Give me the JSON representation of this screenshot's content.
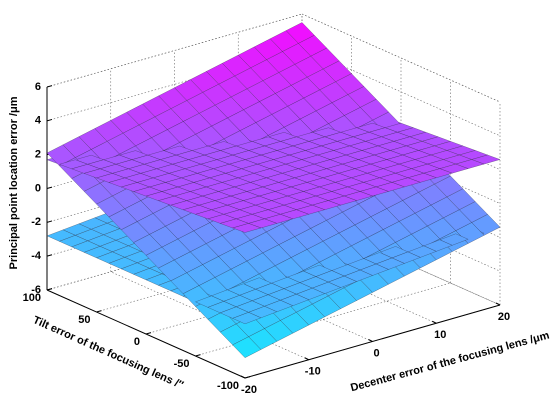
{
  "chart_data": {
    "type": "surface3d",
    "xlabel": "Decenter error of the focusing lens /μm",
    "ylabel": "Tilt error of the focusing lens /″",
    "zlabel": "Principal point location error /μm",
    "x": [
      -20,
      -10,
      0,
      10,
      20
    ],
    "y": [
      -100,
      -50,
      0,
      50,
      100
    ],
    "surfaces": [
      {
        "z": [
          [
            -4.8,
            -3.95,
            -3.1,
            -2.25,
            -1.4
          ],
          [
            -3.075,
            -2.225,
            -1.375,
            -0.525,
            0.325
          ],
          [
            -1.35,
            -0.5,
            0.35,
            1.2,
            2.05
          ],
          [
            0.375,
            1.225,
            2.075,
            2.925,
            3.775
          ],
          [
            2.1,
            2.95,
            3.8,
            4.65,
            5.5
          ]
        ]
      },
      {
        "z": [
          [
            2.6,
            2.6,
            2.6,
            2.6,
            2.6
          ],
          [
            2.375,
            2.375,
            2.375,
            2.375,
            2.375
          ],
          [
            2.15,
            2.15,
            2.15,
            2.15,
            2.15
          ],
          [
            1.925,
            1.925,
            1.925,
            1.925,
            1.925
          ],
          [
            1.7,
            1.7,
            1.7,
            1.7,
            1.7
          ]
        ]
      },
      {
        "z": [
          [
            -2.8,
            -2.45,
            -2.1,
            -1.75,
            -1.4
          ],
          [
            -2.8,
            -2.45,
            -2.1,
            -1.75,
            -1.4
          ],
          [
            -2.8,
            -2.45,
            -2.1,
            -1.75,
            -1.4
          ],
          [
            -2.8,
            -2.45,
            -2.1,
            -1.75,
            -1.4
          ],
          [
            -2.8,
            -2.45,
            -2.1,
            -1.75,
            -1.4
          ]
        ]
      }
    ],
    "xlim": [
      -20,
      20
    ],
    "ylim": [
      -100,
      100
    ],
    "zlim": [
      -6,
      6
    ],
    "xticks": [
      -20,
      -10,
      0,
      10,
      20
    ],
    "yticks": [
      -100,
      -50,
      0,
      50,
      100
    ],
    "zticks": [
      -6,
      -4,
      -2,
      0,
      2,
      4,
      6
    ],
    "grid": true,
    "colormap": "cool"
  }
}
